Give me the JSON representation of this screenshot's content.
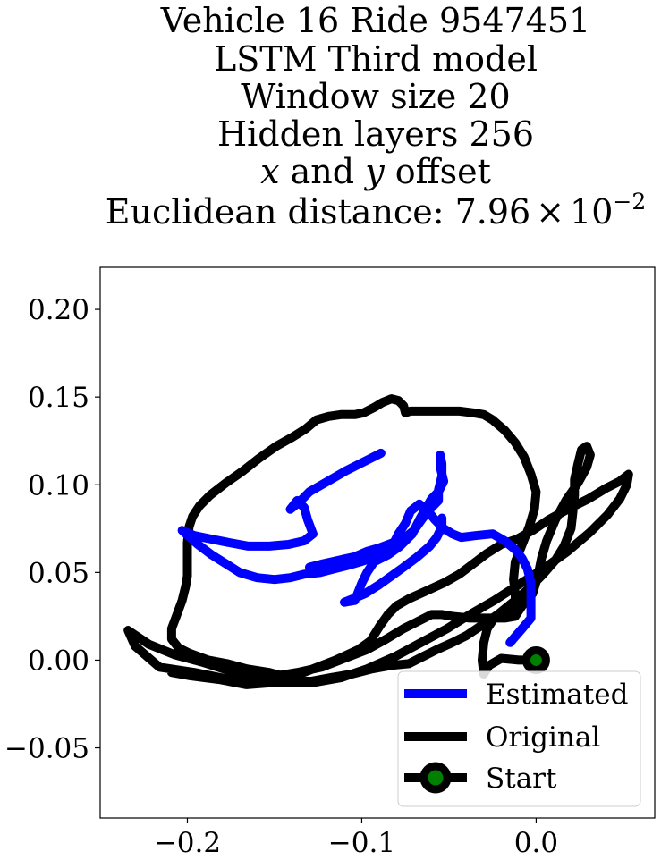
{
  "chart_data": {
    "type": "line",
    "title_lines": [
      "Vehicle 16 Ride 9547451",
      "LSTM Third model",
      "Window size 20",
      "Hidden layers 256",
      "",
      ""
    ],
    "title_offset_line": {
      "x": "x",
      "and": " and ",
      "y": "y",
      "rest": " offset"
    },
    "title_distance": {
      "prefix": "Euclidean distance: 7.96",
      "times": "×",
      "base": "10",
      "exponent": "−2"
    },
    "xlim": [
      -0.25,
      0.068
    ],
    "ylim": [
      -0.09,
      0.224
    ],
    "xticks": [
      -0.2,
      -0.1,
      0.0
    ],
    "xtick_labels": [
      "−0.2",
      "−0.1",
      "0.0"
    ],
    "yticks": [
      -0.05,
      0.0,
      0.05,
      0.1,
      0.15,
      0.2
    ],
    "ytick_labels": [
      "−0.05",
      "0.00",
      "0.05",
      "0.10",
      "0.15",
      "0.20"
    ],
    "grid": false,
    "legend_position": "lower-right",
    "series": [
      {
        "name": "Estimated",
        "color": "#0000ff",
        "points": [
          [
            -0.015,
            0.01
          ],
          [
            -0.008,
            0.018
          ],
          [
            -0.003,
            0.024
          ],
          [
            -0.003,
            0.038
          ],
          [
            -0.003,
            0.044
          ],
          [
            -0.005,
            0.052
          ],
          [
            -0.008,
            0.058
          ],
          [
            -0.012,
            0.063
          ],
          [
            -0.018,
            0.068
          ],
          [
            -0.025,
            0.072
          ],
          [
            -0.035,
            0.071
          ],
          [
            -0.043,
            0.07
          ],
          [
            -0.048,
            0.072
          ],
          [
            -0.053,
            0.075
          ],
          [
            -0.058,
            0.08
          ],
          [
            -0.062,
            0.085
          ],
          [
            -0.067,
            0.089
          ],
          [
            -0.072,
            0.085
          ],
          [
            -0.075,
            0.078
          ],
          [
            -0.079,
            0.072
          ],
          [
            -0.082,
            0.066
          ],
          [
            -0.088,
            0.062
          ],
          [
            -0.095,
            0.058
          ],
          [
            -0.101,
            0.056
          ],
          [
            -0.108,
            0.054
          ],
          [
            -0.116,
            0.052
          ],
          [
            -0.124,
            0.05
          ],
          [
            -0.133,
            0.049
          ],
          [
            -0.141,
            0.047
          ],
          [
            -0.15,
            0.046
          ],
          [
            -0.16,
            0.047
          ],
          [
            -0.17,
            0.05
          ],
          [
            -0.178,
            0.055
          ],
          [
            -0.186,
            0.06
          ],
          [
            -0.194,
            0.066
          ],
          [
            -0.203,
            0.074
          ],
          [
            -0.196,
            0.071
          ],
          [
            -0.186,
            0.069
          ],
          [
            -0.176,
            0.067
          ],
          [
            -0.165,
            0.065
          ],
          [
            -0.153,
            0.065
          ],
          [
            -0.142,
            0.066
          ],
          [
            -0.133,
            0.068
          ],
          [
            -0.128,
            0.072
          ],
          [
            -0.131,
            0.08
          ],
          [
            -0.133,
            0.087
          ],
          [
            -0.137,
            0.091
          ],
          [
            -0.141,
            0.086
          ],
          [
            -0.136,
            0.09
          ],
          [
            -0.13,
            0.096
          ],
          [
            -0.123,
            0.1
          ],
          [
            -0.116,
            0.104
          ],
          [
            -0.109,
            0.108
          ],
          [
            -0.101,
            0.112
          ],
          [
            -0.095,
            0.115
          ],
          [
            -0.089,
            0.118
          ]
        ]
      },
      {
        "name": "Estimated",
        "color": "#0000ff",
        "points": [
          [
            -0.13,
            0.053
          ],
          [
            -0.122,
            0.055
          ],
          [
            -0.113,
            0.057
          ],
          [
            -0.104,
            0.059
          ],
          [
            -0.097,
            0.062
          ],
          [
            -0.09,
            0.064
          ],
          [
            -0.082,
            0.067
          ],
          [
            -0.075,
            0.07
          ],
          [
            -0.07,
            0.074
          ],
          [
            -0.065,
            0.081
          ],
          [
            -0.06,
            0.087
          ],
          [
            -0.056,
            0.091
          ],
          [
            -0.056,
            0.097
          ],
          [
            -0.054,
            0.105
          ],
          [
            -0.054,
            0.112
          ],
          [
            -0.055,
            0.117
          ],
          [
            -0.055,
            0.11
          ],
          [
            -0.053,
            0.102
          ],
          [
            -0.056,
            0.096
          ],
          [
            -0.06,
            0.092
          ],
          [
            -0.063,
            0.087
          ],
          [
            -0.067,
            0.08
          ],
          [
            -0.071,
            0.072
          ],
          [
            -0.078,
            0.065
          ],
          [
            -0.085,
            0.06
          ],
          [
            -0.093,
            0.056
          ],
          [
            -0.097,
            0.05
          ],
          [
            -0.1,
            0.044
          ],
          [
            -0.102,
            0.039
          ],
          [
            -0.104,
            0.034
          ],
          [
            -0.11,
            0.033
          ],
          [
            -0.105,
            0.035
          ],
          [
            -0.098,
            0.038
          ],
          [
            -0.09,
            0.043
          ],
          [
            -0.083,
            0.048
          ],
          [
            -0.076,
            0.053
          ],
          [
            -0.068,
            0.059
          ],
          [
            -0.061,
            0.065
          ],
          [
            -0.057,
            0.07
          ],
          [
            -0.054,
            0.076
          ],
          [
            -0.054,
            0.081
          ]
        ]
      },
      {
        "name": "Original",
        "color": "#000000",
        "points": [
          [
            0.0,
            0.0
          ],
          [
            -0.01,
            0.0
          ],
          [
            -0.02,
            0.001
          ],
          [
            -0.027,
            -0.003
          ],
          [
            -0.03,
            -0.008
          ],
          [
            -0.031,
            0.0
          ],
          [
            -0.03,
            0.01
          ],
          [
            -0.028,
            0.018
          ],
          [
            -0.024,
            0.024
          ],
          [
            -0.017,
            0.026
          ],
          [
            -0.012,
            0.03
          ],
          [
            -0.012,
            0.038
          ],
          [
            -0.013,
            0.046
          ],
          [
            -0.012,
            0.056
          ],
          [
            -0.008,
            0.066
          ],
          [
            -0.004,
            0.076
          ],
          [
            -0.001,
            0.086
          ],
          [
            0.0,
            0.096
          ],
          [
            -0.003,
            0.106
          ],
          [
            -0.007,
            0.116
          ],
          [
            -0.012,
            0.124
          ],
          [
            -0.018,
            0.131
          ],
          [
            -0.025,
            0.137
          ],
          [
            -0.03,
            0.14
          ],
          [
            -0.036,
            0.141
          ],
          [
            -0.044,
            0.142
          ],
          [
            -0.055,
            0.142
          ],
          [
            -0.065,
            0.142
          ],
          [
            -0.072,
            0.142
          ],
          [
            -0.075,
            0.141
          ],
          [
            -0.076,
            0.145
          ],
          [
            -0.079,
            0.148
          ],
          [
            -0.083,
            0.149
          ],
          [
            -0.088,
            0.147
          ],
          [
            -0.093,
            0.144
          ],
          [
            -0.099,
            0.141
          ],
          [
            -0.104,
            0.14
          ],
          [
            -0.112,
            0.14
          ],
          [
            -0.119,
            0.139
          ],
          [
            -0.126,
            0.137
          ],
          [
            -0.132,
            0.132
          ],
          [
            -0.14,
            0.127
          ],
          [
            -0.149,
            0.122
          ],
          [
            -0.159,
            0.115
          ],
          [
            -0.168,
            0.108
          ],
          [
            -0.178,
            0.101
          ],
          [
            -0.187,
            0.094
          ],
          [
            -0.193,
            0.088
          ],
          [
            -0.197,
            0.082
          ],
          [
            -0.199,
            0.076
          ],
          [
            -0.2,
            0.067
          ],
          [
            -0.2,
            0.057
          ],
          [
            -0.2,
            0.048
          ],
          [
            -0.201,
            0.042
          ],
          [
            -0.203,
            0.034
          ],
          [
            -0.206,
            0.026
          ],
          [
            -0.209,
            0.018
          ],
          [
            -0.209,
            0.012
          ],
          [
            -0.205,
            0.007
          ],
          [
            -0.199,
            0.004
          ],
          [
            -0.188,
            0.0
          ],
          [
            -0.177,
            -0.002
          ],
          [
            -0.166,
            -0.005
          ],
          [
            -0.153,
            -0.007
          ],
          [
            -0.142,
            -0.01
          ],
          [
            -0.135,
            -0.012
          ],
          [
            -0.129,
            -0.012
          ],
          [
            -0.118,
            -0.01
          ],
          [
            -0.106,
            -0.008
          ],
          [
            -0.094,
            -0.005
          ],
          [
            -0.083,
            -0.003
          ],
          [
            -0.073,
            -0.002
          ],
          [
            -0.065,
            0.002
          ],
          [
            -0.057,
            0.006
          ],
          [
            -0.048,
            0.01
          ],
          [
            -0.04,
            0.014
          ],
          [
            -0.031,
            0.02
          ],
          [
            -0.022,
            0.026
          ],
          [
            -0.012,
            0.034
          ],
          [
            -0.004,
            0.041
          ],
          [
            0.004,
            0.049
          ],
          [
            0.011,
            0.057
          ],
          [
            0.016,
            0.065
          ],
          [
            0.02,
            0.075
          ],
          [
            0.021,
            0.084
          ],
          [
            0.022,
            0.094
          ],
          [
            0.022,
            0.103
          ],
          [
            0.024,
            0.112
          ],
          [
            0.026,
            0.12
          ],
          [
            0.029,
            0.122
          ],
          [
            0.031,
            0.117
          ],
          [
            0.029,
            0.11
          ],
          [
            0.024,
            0.101
          ],
          [
            0.017,
            0.091
          ],
          [
            0.011,
            0.08
          ],
          [
            0.006,
            0.068
          ],
          [
            0.003,
            0.058
          ],
          [
            0.001,
            0.048
          ],
          [
            -0.002,
            0.038
          ],
          [
            -0.008,
            0.031
          ],
          [
            -0.012,
            0.025
          ],
          [
            -0.018,
            0.024
          ],
          [
            -0.028,
            0.024
          ],
          [
            -0.038,
            0.024
          ],
          [
            -0.048,
            0.025
          ],
          [
            -0.054,
            0.026
          ],
          [
            -0.06,
            0.026
          ],
          [
            -0.068,
            0.022
          ],
          [
            -0.076,
            0.018
          ],
          [
            -0.086,
            0.012
          ],
          [
            -0.097,
            0.006
          ],
          [
            -0.11,
            0.001
          ],
          [
            -0.123,
            -0.004
          ],
          [
            -0.137,
            -0.007
          ],
          [
            -0.155,
            -0.01
          ],
          [
            -0.176,
            -0.011
          ],
          [
            -0.196,
            -0.007
          ],
          [
            -0.216,
            -0.004
          ],
          [
            -0.23,
            0.008
          ],
          [
            -0.234,
            0.017
          ],
          [
            -0.222,
            0.009
          ],
          [
            -0.207,
            0.003
          ],
          [
            -0.192,
            -0.001
          ],
          [
            -0.176,
            -0.006
          ],
          [
            -0.16,
            -0.011
          ],
          [
            -0.146,
            -0.013
          ],
          [
            -0.129,
            -0.013
          ],
          [
            -0.112,
            -0.01
          ],
          [
            -0.097,
            -0.005
          ],
          [
            -0.081,
            0.002
          ],
          [
            -0.066,
            0.01
          ],
          [
            -0.051,
            0.018
          ],
          [
            -0.038,
            0.026
          ],
          [
            -0.024,
            0.034
          ],
          [
            -0.01,
            0.043
          ],
          [
            0.004,
            0.052
          ],
          [
            0.018,
            0.062
          ],
          [
            0.031,
            0.073
          ],
          [
            0.041,
            0.083
          ],
          [
            0.048,
            0.092
          ],
          [
            0.052,
            0.1
          ],
          [
            0.053,
            0.106
          ],
          [
            0.048,
            0.102
          ],
          [
            0.04,
            0.098
          ],
          [
            0.03,
            0.092
          ],
          [
            0.018,
            0.086
          ],
          [
            0.007,
            0.08
          ],
          [
            -0.002,
            0.074
          ],
          [
            -0.011,
            0.069
          ],
          [
            -0.02,
            0.066
          ],
          [
            -0.028,
            0.061
          ],
          [
            -0.036,
            0.055
          ],
          [
            -0.044,
            0.049
          ],
          [
            -0.053,
            0.044
          ],
          [
            -0.064,
            0.039
          ],
          [
            -0.073,
            0.035
          ],
          [
            -0.08,
            0.031
          ],
          [
            -0.085,
            0.026
          ],
          [
            -0.09,
            0.019
          ],
          [
            -0.095,
            0.011
          ],
          [
            -0.102,
            0.006
          ],
          [
            -0.115,
            0.0
          ],
          [
            -0.128,
            -0.005
          ],
          [
            -0.141,
            -0.01
          ],
          [
            -0.153,
            -0.013
          ],
          [
            -0.166,
            -0.014
          ],
          [
            -0.182,
            -0.011
          ],
          [
            -0.198,
            -0.009
          ],
          [
            -0.209,
            -0.007
          ]
        ]
      }
    ],
    "start_point": {
      "name": "Start",
      "x": 0.0,
      "y": 0.0,
      "fill": "#008000",
      "edge": "#000000"
    },
    "legend": [
      {
        "label": "Estimated",
        "color": "#0000ff",
        "marker": false
      },
      {
        "label": "Original",
        "color": "#000000",
        "marker": false
      },
      {
        "label": "Start",
        "color": "#000000",
        "marker": true,
        "marker_fill": "#008000"
      }
    ]
  }
}
